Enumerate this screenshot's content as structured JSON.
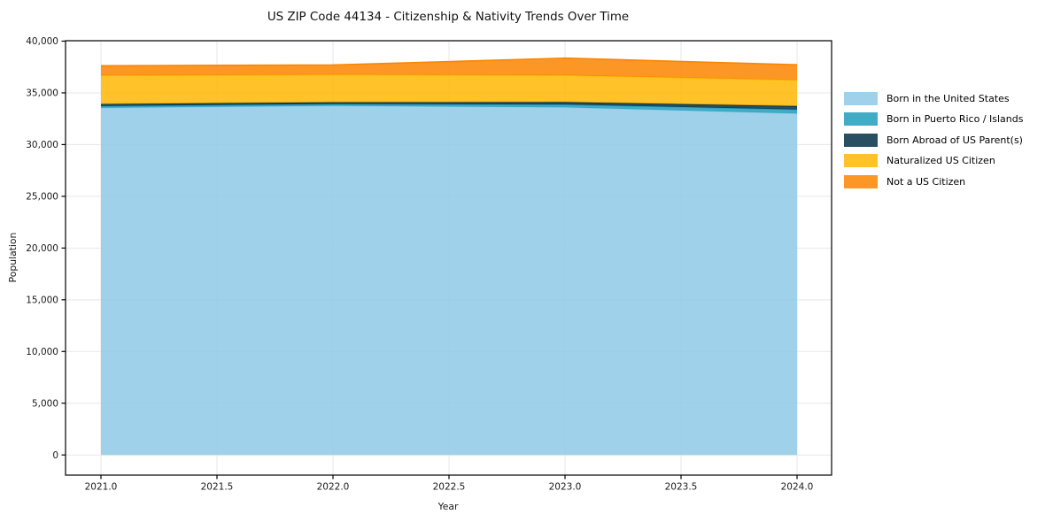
{
  "chart_data": {
    "type": "area",
    "stacked": true,
    "title": "US ZIP Code 44134 - Citizenship & Nativity Trends Over Time",
    "xlabel": "Year",
    "ylabel": "Population",
    "x": [
      2021,
      2022,
      2023,
      2024
    ],
    "series": [
      {
        "name": "Born in the United States",
        "color": "#8ecae6",
        "values": [
          33550,
          33750,
          33600,
          33000
        ]
      },
      {
        "name": "Born in Puerto Rico / Islands",
        "color": "#219ebc",
        "values": [
          170,
          170,
          280,
          400
        ]
      },
      {
        "name": "Born Abroad of US Parent(s)",
        "color": "#023047",
        "values": [
          200,
          170,
          230,
          320
        ]
      },
      {
        "name": "Naturalized US Citizen",
        "color": "#ffb703",
        "values": [
          2760,
          2670,
          2590,
          2520
        ]
      },
      {
        "name": "Not a US Citizen",
        "color": "#fb8500",
        "values": [
          940,
          940,
          1660,
          1480
        ]
      }
    ],
    "stacked_totals": [
      37620,
      37700,
      38360,
      37720
    ],
    "xticks": [
      2021.0,
      2021.5,
      2022.0,
      2022.5,
      2023.0,
      2023.5,
      2024.0
    ],
    "xtick_labels": [
      "2021.0",
      "2021.5",
      "2022.0",
      "2022.5",
      "2023.0",
      "2023.5",
      "2024.0"
    ],
    "yticks": [
      0,
      5000,
      10000,
      15000,
      20000,
      25000,
      30000,
      35000,
      40000
    ],
    "ytick_labels": [
      "0",
      "5,000",
      "10,000",
      "15,000",
      "20,000",
      "25,000",
      "30,000",
      "35,000",
      "40,000"
    ],
    "ylim": [
      0,
      40000
    ],
    "grid": true,
    "fill_opacity": 0.85,
    "legend_position": "right-outside",
    "legend_entries": [
      "Born in the United States",
      "Born in Puerto Rico / Islands",
      "Born Abroad of US Parent(s)",
      "Naturalized US Citizen",
      "Not a US Citizen"
    ],
    "colors": {
      "grid": "#e7e7e7",
      "spine": "#000000",
      "tick_text": "#1a1a1a",
      "title_text": "#111111"
    }
  }
}
